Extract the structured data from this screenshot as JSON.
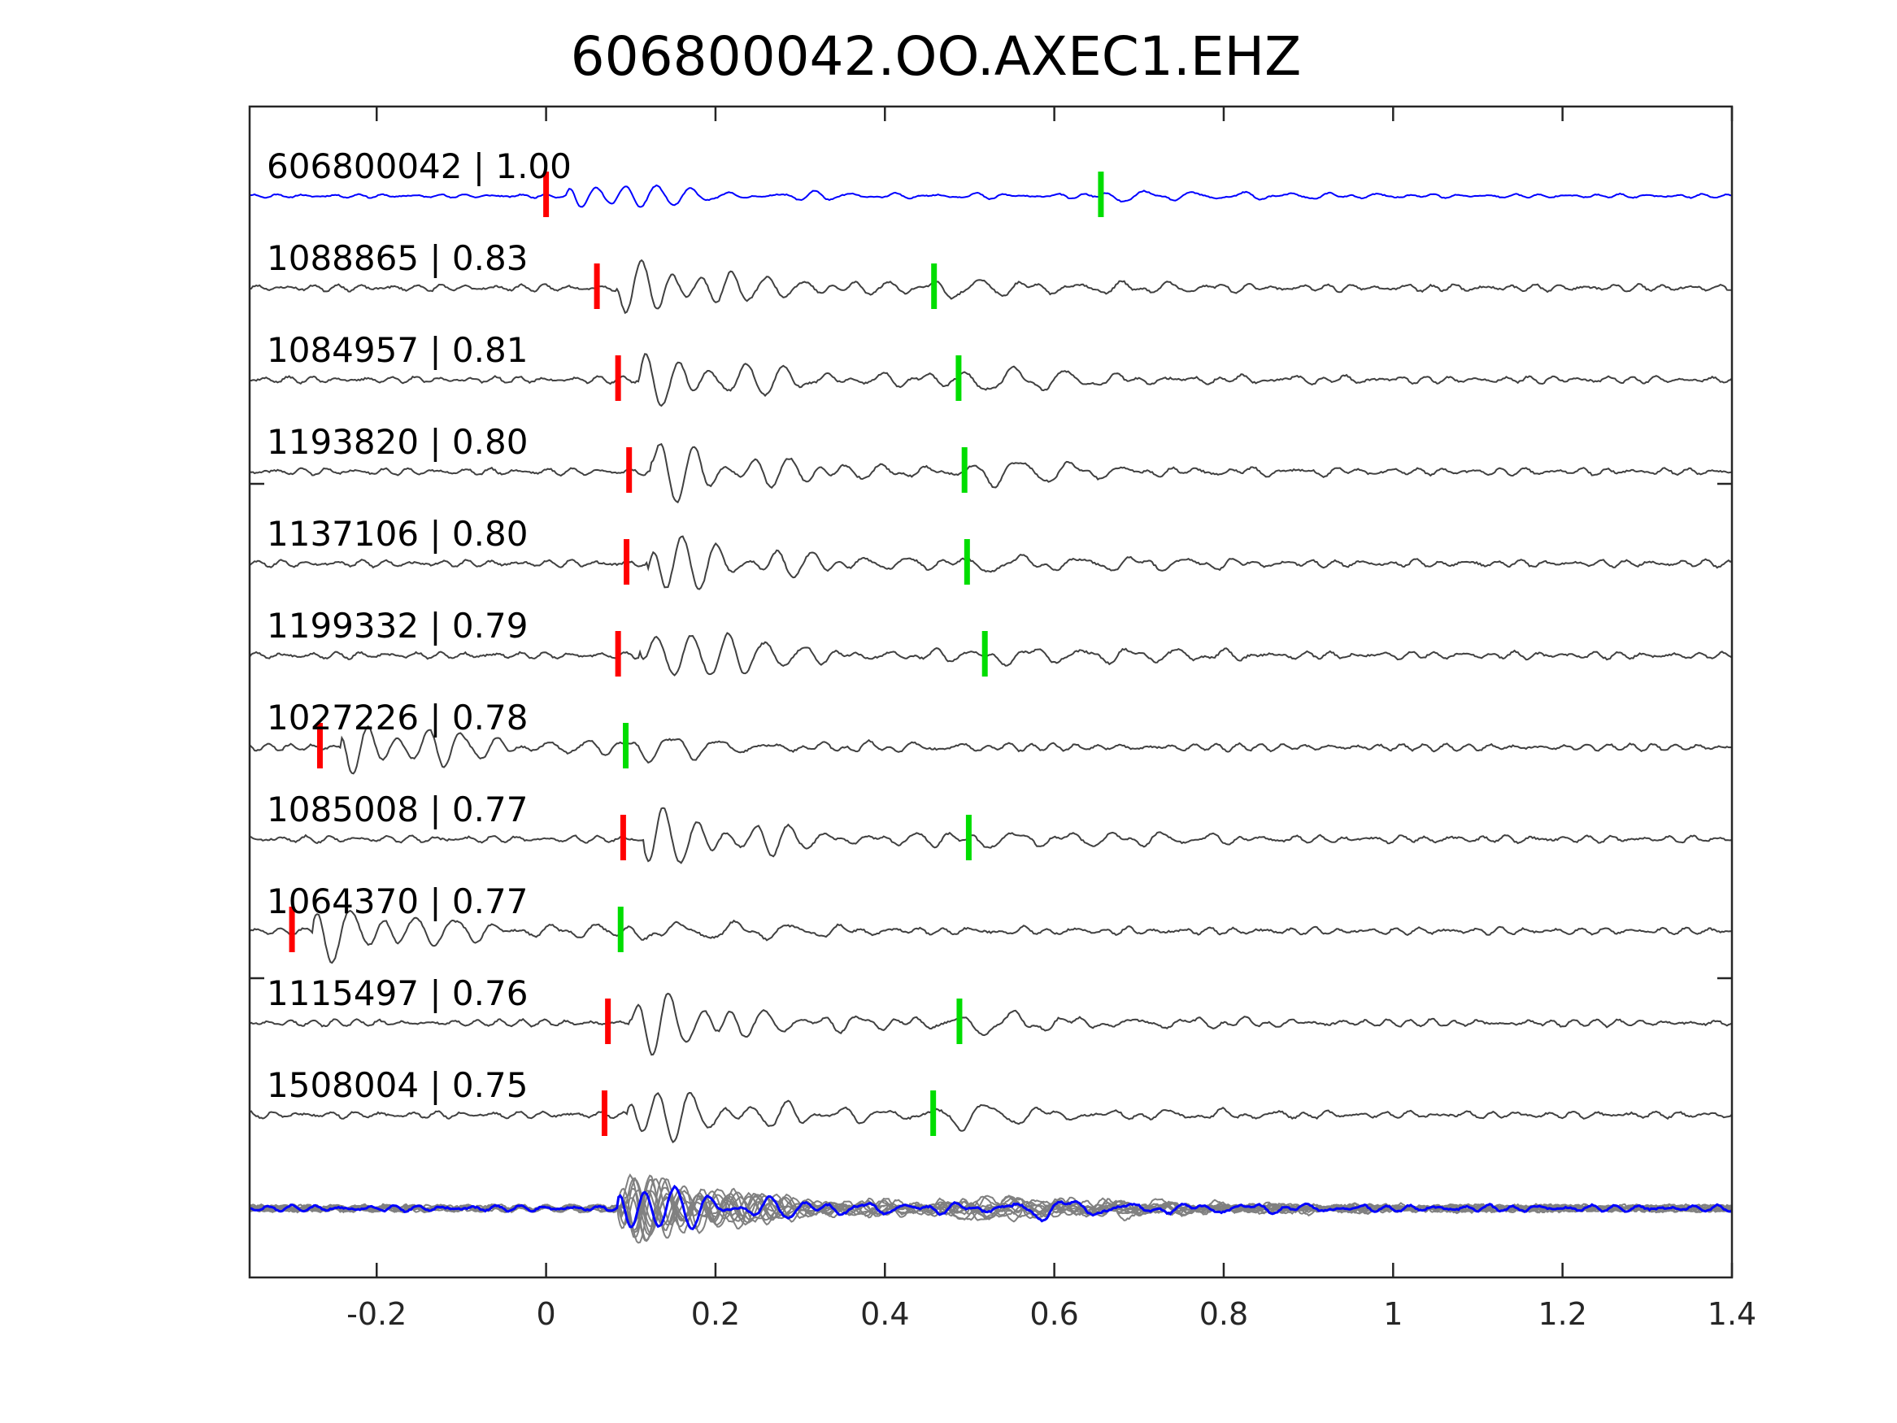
{
  "chart_data": {
    "type": "line",
    "title": "606800042.OO.AXEC1.EHZ",
    "xlabel": "",
    "ylabel": "",
    "xlim": [
      -0.35,
      1.4
    ],
    "xticks": [
      -0.2,
      0,
      0.2,
      0.4,
      0.6,
      0.8,
      1,
      1.2,
      1.4
    ],
    "xtick_labels": [
      "-0.2",
      "0",
      "0.2",
      "0.4",
      "0.6",
      "0.8",
      "1",
      "1.2",
      "1.4"
    ],
    "grid": false,
    "colors": {
      "template": "#0000ff",
      "trace": "#404040",
      "stack": "#808080",
      "p_pick": "#ff0000",
      "s_pick": "#00dd00"
    },
    "series": [
      {
        "name": "606800042 | 1.00",
        "id": "606800042",
        "cc": 1.0,
        "p_pick": 0.0,
        "s_pick": 0.655,
        "template": true,
        "seed": 11
      },
      {
        "name": "1088865 | 0.83",
        "id": "1088865",
        "cc": 0.83,
        "p_pick": 0.06,
        "s_pick": 0.458,
        "seed": 23
      },
      {
        "name": "1084957 | 0.81",
        "id": "1084957",
        "cc": 0.81,
        "p_pick": 0.085,
        "s_pick": 0.487,
        "seed": 37
      },
      {
        "name": "1193820 | 0.80",
        "id": "1193820",
        "cc": 0.8,
        "p_pick": 0.098,
        "s_pick": 0.494,
        "seed": 41
      },
      {
        "name": "1137106 | 0.80",
        "id": "1137106",
        "cc": 0.8,
        "p_pick": 0.095,
        "s_pick": 0.497,
        "seed": 53
      },
      {
        "name": "1199332 | 0.79",
        "id": "1199332",
        "cc": 0.79,
        "p_pick": 0.085,
        "s_pick": 0.518,
        "seed": 67
      },
      {
        "name": "1027226 | 0.78",
        "id": "1027226",
        "cc": 0.78,
        "p_pick": -0.267,
        "s_pick": 0.094,
        "seed": 71
      },
      {
        "name": "1085008 | 0.77",
        "id": "1085008",
        "cc": 0.77,
        "p_pick": 0.091,
        "s_pick": 0.499,
        "seed": 83
      },
      {
        "name": "1064370 | 0.77",
        "id": "1064370",
        "cc": 0.77,
        "p_pick": -0.3,
        "s_pick": 0.088,
        "seed": 97
      },
      {
        "name": "1115497 | 0.76",
        "id": "1115497",
        "cc": 0.76,
        "p_pick": 0.073,
        "s_pick": 0.488,
        "seed": 101
      },
      {
        "name": "1508004 | 0.75",
        "id": "1508004",
        "cc": 0.75,
        "p_pick": 0.069,
        "s_pick": 0.457,
        "seed": 113
      }
    ],
    "stack": {
      "onset": 0.085,
      "peak_time": 0.11
    }
  }
}
